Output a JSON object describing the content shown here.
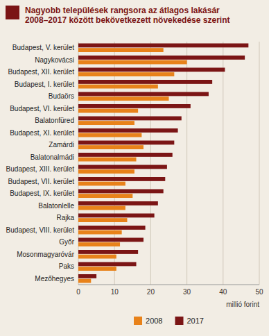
{
  "chart_data": {
    "type": "bar",
    "orientation": "horizontal",
    "title": "Nagyobb települések rangsora az átlagos lakásár 2008–2017 között bekövetkezett növekedése szerint",
    "xlabel": "millió forint",
    "categories": [
      "Budapest, V. kerület",
      "Nagykovácsi",
      "Budapest, XII. kerület",
      "Budapest, I. kerület",
      "Budaörs",
      "Budapest, VI. kerület",
      "Balatonfüred",
      "Budapest, XI. kerület",
      "Zamárdi",
      "Balatonalmádi",
      "Budapest, XIII. kerület",
      "Budapest, VII. kerület",
      "Budapest, IX. kerület",
      "Balatonlelle",
      "Rajka",
      "Budapest, VIII. kerület",
      "Győr",
      "Mosonmagyaróvár",
      "Paks",
      "Mezőhegyes"
    ],
    "series": [
      {
        "name": "2008",
        "color": "#E8821A",
        "values": [
          23.5,
          30.0,
          26.5,
          22.0,
          25.0,
          16.5,
          15.5,
          17.5,
          18.0,
          16.0,
          15.5,
          13.0,
          15.0,
          13.0,
          13.5,
          12.0,
          11.5,
          10.5,
          10.5,
          3.5
        ]
      },
      {
        "name": "2017",
        "color": "#7B1515",
        "values": [
          47.0,
          46.0,
          40.5,
          37.0,
          36.0,
          31.0,
          28.5,
          27.5,
          26.5,
          26.0,
          24.5,
          24.0,
          23.5,
          22.0,
          21.0,
          18.5,
          18.0,
          16.5,
          16.0,
          5.0
        ]
      }
    ],
    "xlim": [
      0,
      50
    ],
    "xticks": [
      0,
      10,
      20,
      30,
      40,
      50
    ],
    "grid": true,
    "legend": "bottom"
  }
}
